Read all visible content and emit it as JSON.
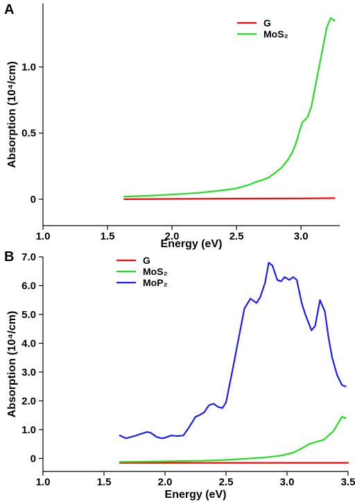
{
  "chart_data": [
    {
      "panel": "A",
      "type": "line",
      "xlabel": "Energy (eV)",
      "ylabel": "Absorption (10⁴/cm)",
      "xlim": [
        1.0,
        3.3
      ],
      "ylim": [
        -0.2,
        1.48
      ],
      "xticks": [
        "1.0",
        "1.5",
        "2.0",
        "2.5",
        "3.0"
      ],
      "xtick_values": [
        1.0,
        1.5,
        2.0,
        2.5,
        3.0
      ],
      "yticks": [
        "0",
        "0.5",
        "1.0"
      ],
      "ytick_values": [
        0,
        0.5,
        1.0
      ],
      "legend_position": "top-right",
      "series": [
        {
          "name": "G",
          "color": "#ff0000",
          "x": [
            1.63,
            2.0,
            2.5,
            3.0,
            3.26
          ],
          "y": [
            0.0,
            0.002,
            0.004,
            0.006,
            0.008
          ]
        },
        {
          "name": "MoS₂",
          "color": "#22dd22",
          "x": [
            1.63,
            1.8,
            2.0,
            2.2,
            2.4,
            2.5,
            2.6,
            2.65,
            2.7,
            2.75,
            2.8,
            2.85,
            2.9,
            2.93,
            2.96,
            2.99,
            3.01,
            3.05,
            3.08,
            3.11,
            3.15,
            3.2,
            3.23,
            3.26
          ],
          "y": [
            0.02,
            0.025,
            0.035,
            0.048,
            0.068,
            0.082,
            0.11,
            0.13,
            0.145,
            0.165,
            0.2,
            0.24,
            0.3,
            0.35,
            0.42,
            0.52,
            0.58,
            0.62,
            0.7,
            0.85,
            1.05,
            1.3,
            1.37,
            1.35
          ]
        }
      ]
    },
    {
      "panel": "B",
      "type": "line",
      "xlabel": "Energy (eV)",
      "ylabel": "Absorption (10⁴/cm)",
      "xlim": [
        1.0,
        3.5
      ],
      "ylim": [
        -0.45,
        7.0
      ],
      "xticks": [
        "1.0",
        "1.5",
        "2.0",
        "2.5",
        "3.0",
        "3.5"
      ],
      "xtick_values": [
        1.0,
        1.5,
        2.0,
        2.5,
        3.0,
        3.5
      ],
      "yticks": [
        "0",
        "1.0",
        "2.0",
        "3.0",
        "4.0",
        "5.0",
        "6.0",
        "7.0"
      ],
      "ytick_values": [
        0,
        1,
        2,
        3,
        4,
        5,
        6,
        7
      ],
      "legend_position": "top-left",
      "series": [
        {
          "name": "G",
          "color": "#ff0000",
          "x": [
            1.63,
            2.0,
            2.5,
            3.0,
            3.5
          ],
          "y": [
            -0.15,
            -0.15,
            -0.15,
            -0.15,
            -0.15
          ]
        },
        {
          "name": "MoS₂",
          "color": "#22dd22",
          "x": [
            1.63,
            2.0,
            2.3,
            2.5,
            2.7,
            2.85,
            2.95,
            3.05,
            3.12,
            3.18,
            3.22,
            3.3,
            3.38,
            3.45,
            3.48
          ],
          "y": [
            -0.12,
            -0.1,
            -0.08,
            -0.05,
            0.0,
            0.05,
            0.1,
            0.2,
            0.35,
            0.5,
            0.55,
            0.65,
            0.95,
            1.45,
            1.4
          ]
        },
        {
          "name": "MoP₂",
          "color": "#1a1aff",
          "x": [
            1.63,
            1.68,
            1.75,
            1.8,
            1.85,
            1.88,
            1.93,
            1.97,
            2.0,
            2.05,
            2.1,
            2.15,
            2.2,
            2.25,
            2.28,
            2.32,
            2.36,
            2.4,
            2.43,
            2.47,
            2.5,
            2.55,
            2.6,
            2.65,
            2.7,
            2.75,
            2.78,
            2.82,
            2.85,
            2.88,
            2.92,
            2.95,
            2.98,
            3.02,
            3.05,
            3.08,
            3.12,
            3.15,
            3.2,
            3.23,
            3.27,
            3.31,
            3.34,
            3.37,
            3.41,
            3.45,
            3.48
          ],
          "y": [
            0.8,
            0.7,
            0.78,
            0.85,
            0.92,
            0.9,
            0.75,
            0.7,
            0.72,
            0.8,
            0.78,
            0.8,
            1.1,
            1.45,
            1.5,
            1.6,
            1.85,
            1.9,
            1.8,
            1.75,
            1.95,
            3.0,
            4.1,
            5.2,
            5.55,
            5.4,
            5.6,
            6.1,
            6.8,
            6.7,
            6.2,
            6.15,
            6.3,
            6.2,
            6.3,
            6.2,
            5.4,
            5.0,
            4.45,
            4.6,
            5.5,
            5.1,
            4.2,
            3.5,
            2.9,
            2.55,
            2.5
          ]
        }
      ]
    }
  ]
}
